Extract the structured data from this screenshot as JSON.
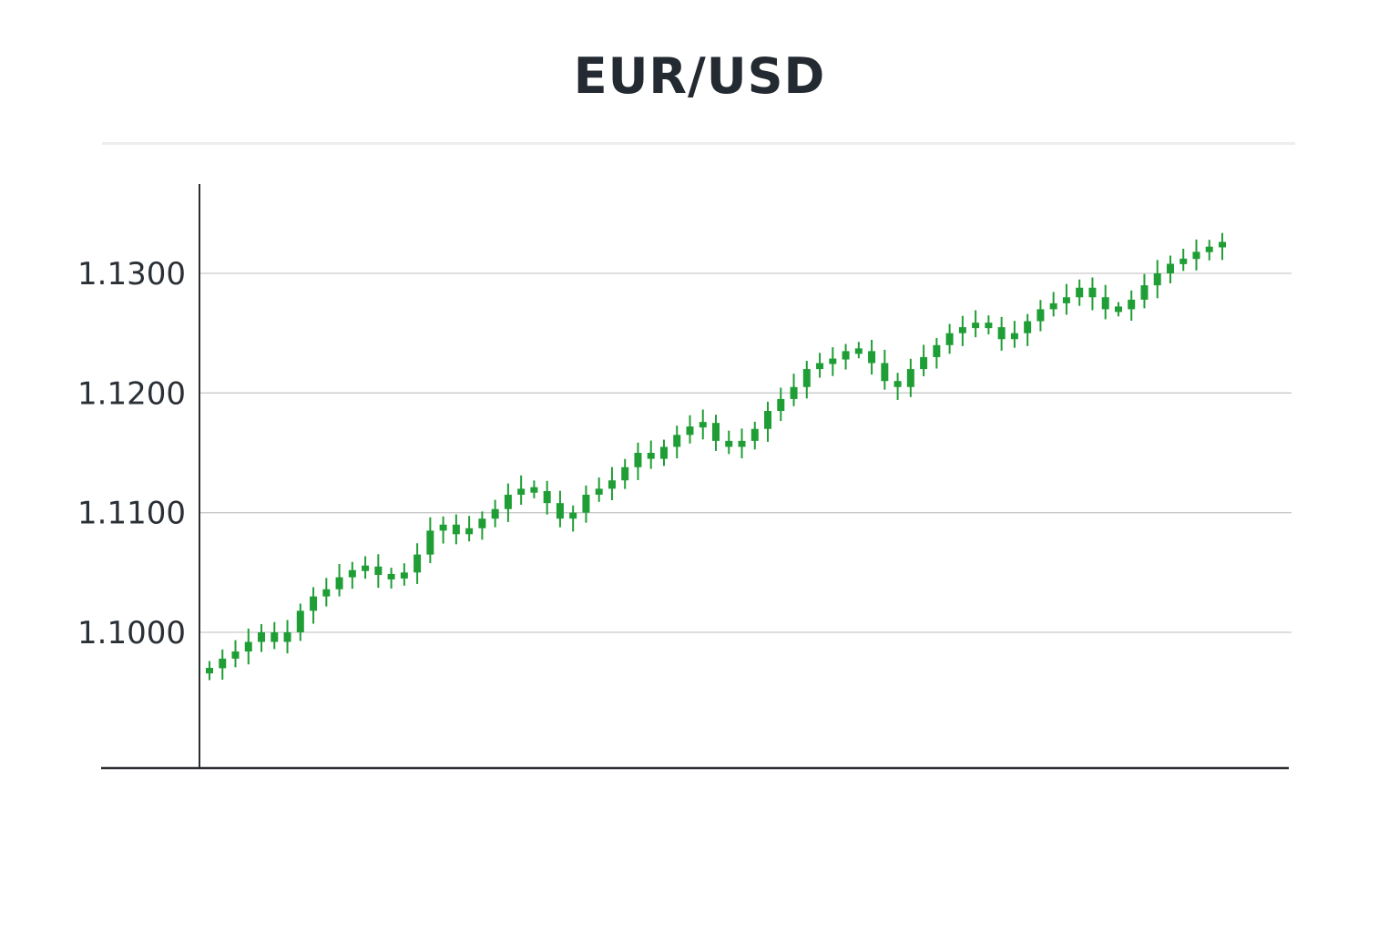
{
  "chart_data": {
    "type": "candlestick",
    "title": "EUR/USD",
    "xlabel": "",
    "ylabel": "",
    "ylim": [
      1.0889,
      1.1368
    ],
    "y_ticks": [
      1.1,
      1.11,
      1.12,
      1.13
    ],
    "y_tick_labels": [
      "1.1000",
      "1.1100",
      "1.1200",
      "1.1300"
    ],
    "grid": "horizontal",
    "colors": {
      "up": "#1f9e35",
      "down": "#1f9e35",
      "grid": "#c9c9c9",
      "axis": "#2b2f33",
      "text": "#242a31"
    },
    "candle_closes": [
      1.097,
      1.0978,
      1.0984,
      1.0992,
      1.1,
      1.0992,
      1.1,
      1.1018,
      1.103,
      1.1036,
      1.1046,
      1.1052,
      1.1055,
      1.1048,
      1.1045,
      1.105,
      1.1065,
      1.1085,
      1.109,
      1.1082,
      1.1087,
      1.1095,
      1.1103,
      1.1115,
      1.112,
      1.1118,
      1.1108,
      1.1095,
      1.11,
      1.1115,
      1.112,
      1.1127,
      1.1138,
      1.115,
      1.1145,
      1.1155,
      1.1165,
      1.1172,
      1.1175,
      1.116,
      1.1155,
      1.116,
      1.117,
      1.1185,
      1.1195,
      1.1205,
      1.122,
      1.1225,
      1.1228,
      1.1235,
      1.1235,
      1.1225,
      1.121,
      1.1205,
      1.122,
      1.123,
      1.124,
      1.125,
      1.1255,
      1.1258,
      1.1255,
      1.1245,
      1.125,
      1.126,
      1.127,
      1.1275,
      1.128,
      1.1288,
      1.128,
      1.127,
      1.127,
      1.1278,
      1.129,
      1.13,
      1.1308,
      1.1312,
      1.1318,
      1.1322,
      1.1326
    ]
  }
}
